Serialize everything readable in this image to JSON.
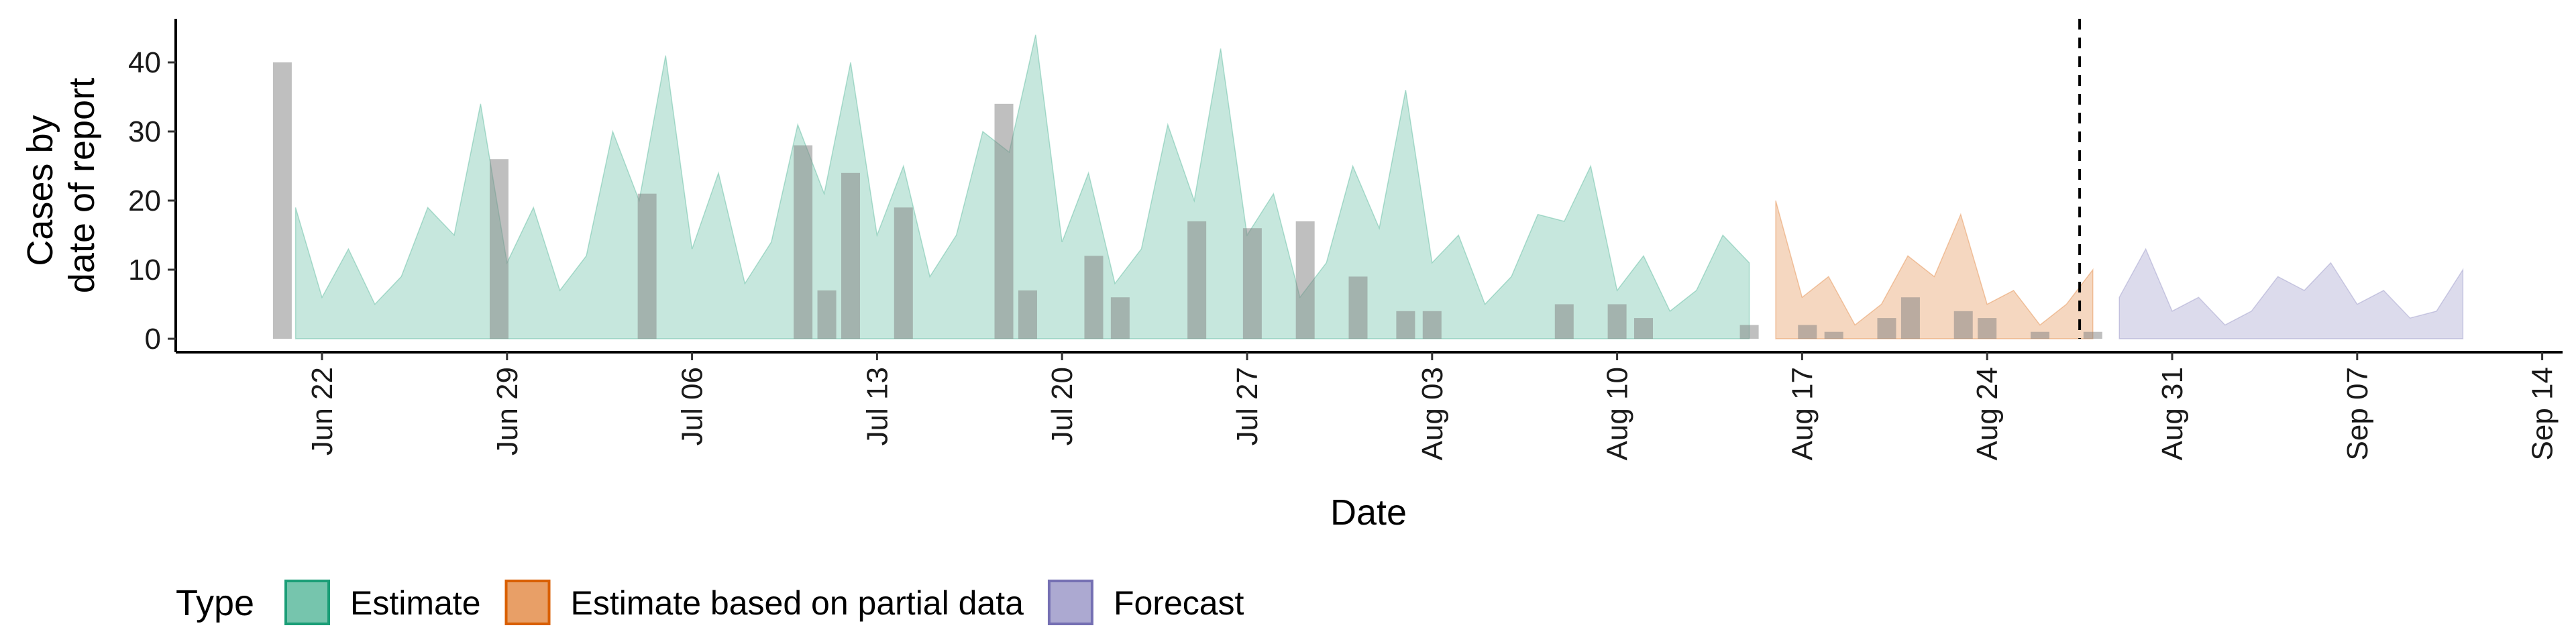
{
  "chart_data": {
    "type": "area",
    "xlabel": "Date",
    "ylabel_lines": [
      "Cases by",
      "date of report"
    ],
    "ylim": [
      0,
      45
    ],
    "y_ticks": [
      0,
      10,
      20,
      30,
      40
    ],
    "x_range_days": [
      -4,
      89
    ],
    "x_ticks": [
      {
        "day": 0,
        "label": "Jun 22"
      },
      {
        "day": 7,
        "label": "Jun 29"
      },
      {
        "day": 14,
        "label": "Jul 06"
      },
      {
        "day": 21,
        "label": "Jul 13"
      },
      {
        "day": 28,
        "label": "Jul 20"
      },
      {
        "day": 35,
        "label": "Jul 27"
      },
      {
        "day": 42,
        "label": "Aug 03"
      },
      {
        "day": 49,
        "label": "Aug 10"
      },
      {
        "day": 56,
        "label": "Aug 17"
      },
      {
        "day": 63,
        "label": "Aug 24"
      },
      {
        "day": 70,
        "label": "Aug 31"
      },
      {
        "day": 77,
        "label": "Sep 07"
      },
      {
        "day": 84,
        "label": "Sep 14"
      }
    ],
    "forecast_date_day": 66.5,
    "series": [
      {
        "name": "Estimate",
        "color": "#1b9e77",
        "x_start_day": -1,
        "values": [
          19,
          6,
          13,
          5,
          9,
          19,
          15,
          34,
          11,
          19,
          7,
          12,
          30,
          20,
          41,
          13,
          24,
          8,
          14,
          31,
          21,
          40,
          15,
          25,
          9,
          15,
          30,
          27,
          44,
          14,
          24,
          8,
          13,
          31,
          20,
          42,
          15,
          21,
          6,
          11,
          25,
          16,
          36,
          11,
          15,
          5,
          9,
          18,
          17,
          25,
          7,
          12,
          4,
          7,
          15,
          11
        ]
      },
      {
        "name": "Estimate based on partial data",
        "color": "#d95f02",
        "x_start_day": 55,
        "values": [
          20,
          6,
          9,
          2,
          5,
          12,
          9,
          18,
          5,
          7,
          2,
          5,
          10
        ]
      },
      {
        "name": "Forecast",
        "color": "#7570b3",
        "x_start_day": 68,
        "values": [
          6,
          13,
          4,
          6,
          2,
          4,
          9,
          7,
          11,
          5,
          7,
          3,
          4,
          10
        ]
      }
    ],
    "reported_cases": [
      {
        "day": -1.5,
        "value": 40
      },
      {
        "day": 6.7,
        "value": 26
      },
      {
        "day": 12.3,
        "value": 21
      },
      {
        "day": 18.2,
        "value": 28
      },
      {
        "day": 19.1,
        "value": 7
      },
      {
        "day": 20.0,
        "value": 24
      },
      {
        "day": 22.0,
        "value": 19
      },
      {
        "day": 25.8,
        "value": 34
      },
      {
        "day": 26.7,
        "value": 7
      },
      {
        "day": 29.2,
        "value": 12
      },
      {
        "day": 30.2,
        "value": 6
      },
      {
        "day": 33.1,
        "value": 17
      },
      {
        "day": 35.2,
        "value": 16
      },
      {
        "day": 37.2,
        "value": 17
      },
      {
        "day": 39.2,
        "value": 9
      },
      {
        "day": 41.0,
        "value": 4
      },
      {
        "day": 42.0,
        "value": 4
      },
      {
        "day": 47.0,
        "value": 5
      },
      {
        "day": 49.0,
        "value": 5
      },
      {
        "day": 50.0,
        "value": 3
      },
      {
        "day": 54.0,
        "value": 2
      },
      {
        "day": 56.2,
        "value": 2
      },
      {
        "day": 57.2,
        "value": 1
      },
      {
        "day": 59.2,
        "value": 3
      },
      {
        "day": 60.1,
        "value": 6
      },
      {
        "day": 62.1,
        "value": 4
      },
      {
        "day": 63.0,
        "value": 3
      },
      {
        "day": 65.0,
        "value": 1
      },
      {
        "day": 67.0,
        "value": 1
      }
    ],
    "legend": {
      "title": "Type",
      "position": "bottom",
      "items": [
        {
          "label": "Estimate",
          "color": "#1b9e77"
        },
        {
          "label": "Estimate based on partial data",
          "color": "#d95f02"
        },
        {
          "label": "Forecast",
          "color": "#7570b3"
        }
      ]
    },
    "grid": false
  }
}
